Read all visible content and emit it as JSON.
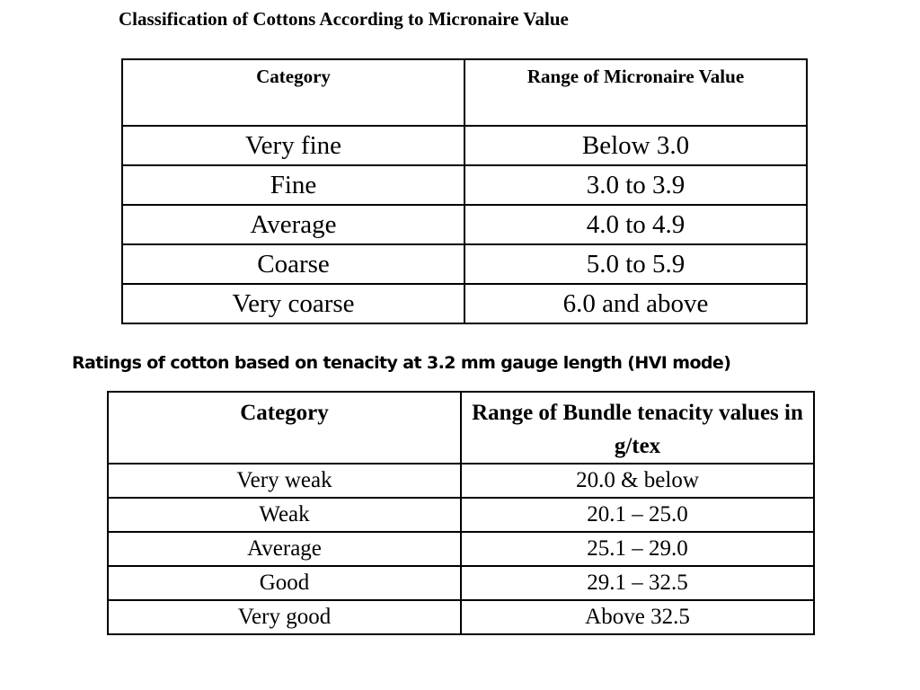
{
  "micronaire_section": {
    "title": "Classification of Cottons According to Micronaire Value",
    "headers": [
      "Category",
      "Range of Micronaire Value"
    ],
    "rows": [
      [
        "Very fine",
        "Below 3.0"
      ],
      [
        "Fine",
        "3.0 to 3.9"
      ],
      [
        "Average",
        "4.0 to 4.9"
      ],
      [
        "Coarse",
        "5.0 to 5.9"
      ],
      [
        "Very coarse",
        "6.0 and above"
      ]
    ]
  },
  "tenacity_section": {
    "title": "Ratings of cotton based on tenacity at 3.2 mm gauge length (HVI mode)",
    "headers": [
      "Category",
      "Range of Bundle tenacity values in g/tex"
    ],
    "rows": [
      [
        "Very weak",
        "20.0 & below"
      ],
      [
        "Weak",
        "20.1 – 25.0"
      ],
      [
        "Average",
        "25.1 – 29.0"
      ],
      [
        "Good",
        "29.1 – 32.5"
      ],
      [
        "Very good",
        "Above 32.5"
      ]
    ]
  }
}
